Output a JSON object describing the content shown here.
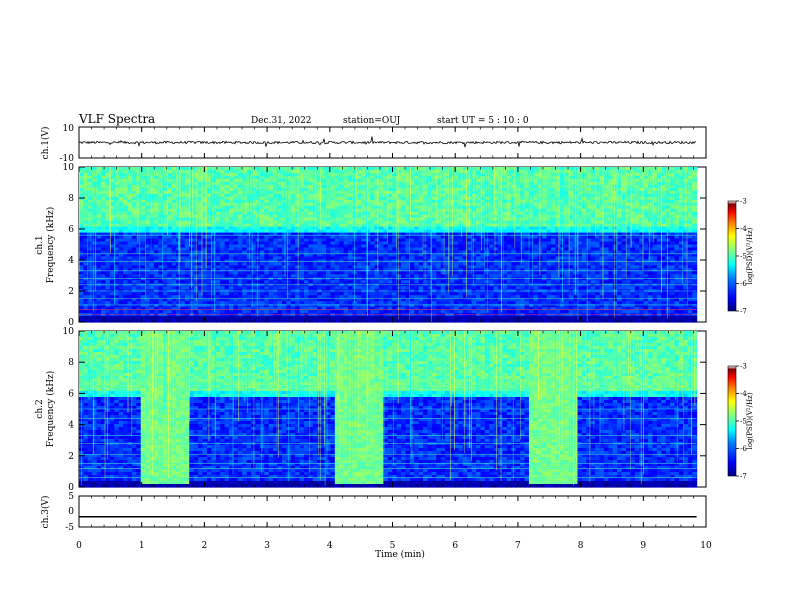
{
  "header": {
    "title": "VLF Spectra",
    "date": "Dec.31, 2022",
    "station": "station=OUJ",
    "start_ut": "start  UT =   5 : 10 : 0"
  },
  "colors": {
    "background": "#ffffff",
    "colormap": [
      "#00007f",
      "#0000ff",
      "#0080ff",
      "#00ffff",
      "#80ff80",
      "#ffff00",
      "#ff8000",
      "#ff0000",
      "#7f0000",
      "#ffffff"
    ]
  },
  "chart_data": [
    {
      "type": "line",
      "panel": "ch1-waveform",
      "ylabel": "ch.1(V)",
      "ylim": [
        -10,
        10
      ],
      "y_ticks": [
        "10",
        "-10"
      ],
      "baseline_value": 0,
      "x_range_min": [
        0,
        9.85
      ]
    },
    {
      "type": "heatmap",
      "panel": "ch1-spectrogram",
      "ylabel": "ch.1 Frequency (kHz)",
      "ylim": [
        0,
        10
      ],
      "y_ticks": [
        "0",
        "2",
        "4",
        "6",
        "8",
        "10"
      ],
      "data_extent_min": [
        0,
        9.85
      ],
      "colorbar": {
        "label": "log(PSD)(V²/Hz)",
        "range": [
          -7,
          -3
        ],
        "ticks": [
          "-3",
          "-4",
          "-5",
          "-6",
          "-7"
        ]
      }
    },
    {
      "type": "heatmap",
      "panel": "ch2-spectrogram",
      "ylabel": "ch.2 Frequency (kHz)",
      "ylim": [
        0,
        10
      ],
      "y_ticks": [
        "0",
        "2",
        "4",
        "6",
        "8",
        "10"
      ],
      "data_extent_min": [
        0,
        9.85
      ],
      "enhanced_intervals_min": [
        [
          1.0,
          1.75
        ],
        [
          4.1,
          4.85
        ],
        [
          7.2,
          7.95
        ]
      ],
      "colorbar": {
        "label": "log(PSD)(V²/Hz)",
        "range": [
          -7,
          -3
        ],
        "ticks": [
          "-3",
          "-4",
          "-5",
          "-6",
          "-7"
        ]
      }
    },
    {
      "type": "line",
      "panel": "ch3-waveform",
      "ylabel": "ch.3(V)",
      "ylim": [
        -5,
        5
      ],
      "y_ticks": [
        "5",
        "0",
        "-5"
      ],
      "baseline_value": -1.7,
      "x_range_min": [
        0,
        9.85
      ]
    }
  ],
  "x_axis": {
    "label": "Time (min)",
    "range": [
      0,
      10
    ],
    "ticks": [
      "0",
      "1",
      "2",
      "3",
      "4",
      "5",
      "6",
      "7",
      "8",
      "9",
      "10"
    ]
  }
}
